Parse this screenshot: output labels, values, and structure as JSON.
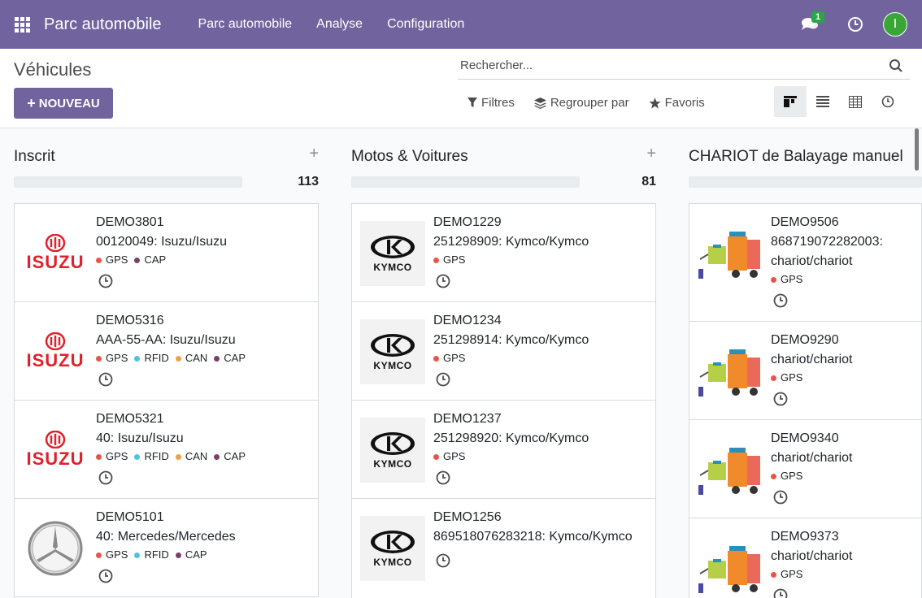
{
  "navbar": {
    "brand": "Parc automobile",
    "menu": [
      "Parc automobile",
      "Analyse",
      "Configuration"
    ],
    "chat_count": "1",
    "avatar_initial": "I",
    "bg_color": "#71639e"
  },
  "control": {
    "breadcrumb": "Véhicules",
    "new_button": "NOUVEAU",
    "search_placeholder": "Rechercher...",
    "filters_label": "Filtres",
    "group_by_label": "Regrouper par",
    "favorites_label": "Favoris",
    "views": [
      "kanban-view-icon",
      "list-view-icon",
      "pivot-view-icon",
      "activity-view-icon"
    ],
    "active_view": "kanban"
  },
  "tag_colors": {
    "GPS": "#e9544a",
    "RFID": "#4fc1e9",
    "CAN": "#f0a04b",
    "CAP": "#7a3e6f"
  },
  "columns": [
    {
      "title": "Inscrit",
      "count": "113",
      "cards": [
        {
          "name": "DEMO3801",
          "desc": "00120049: Isuzu/Isuzu",
          "logo": "isuzu",
          "tags": [
            "GPS",
            "CAP"
          ]
        },
        {
          "name": "DEMO5316",
          "desc": "AAA-55-AA: Isuzu/Isuzu",
          "logo": "isuzu",
          "tags": [
            "GPS",
            "RFID",
            "CAN",
            "CAP"
          ]
        },
        {
          "name": "DEMO5321",
          "desc": "40: Isuzu/Isuzu",
          "logo": "isuzu",
          "tags": [
            "GPS",
            "RFID",
            "CAN",
            "CAP"
          ]
        },
        {
          "name": "DEMO5101",
          "desc": "40: Mercedes/Mercedes",
          "logo": "mercedes",
          "tags": [
            "GPS",
            "RFID",
            "CAP"
          ]
        }
      ]
    },
    {
      "title": "Motos & Voitures",
      "count": "81",
      "cards": [
        {
          "name": "DEMO1229",
          "desc": "251298909: Kymco/Kymco",
          "logo": "kymco",
          "tags": [
            "GPS"
          ]
        },
        {
          "name": "DEMO1234",
          "desc": "251298914: Kymco/Kymco",
          "logo": "kymco",
          "tags": [
            "GPS"
          ]
        },
        {
          "name": "DEMO1237",
          "desc": "251298920: Kymco/Kymco",
          "logo": "kymco",
          "tags": [
            "GPS"
          ]
        },
        {
          "name": "DEMO1256",
          "desc": "869518076283218: Kymco/Kymco",
          "logo": "kymco",
          "tags": []
        }
      ]
    },
    {
      "title": "CHARIOT de Balayage manuel",
      "count": "",
      "cards": [
        {
          "name": "DEMO9506",
          "desc": "868719072282003: chariot/chariot",
          "logo": "chariot",
          "tags": [
            "GPS"
          ]
        },
        {
          "name": "DEMO9290",
          "desc": "chariot/chariot",
          "logo": "chariot",
          "tags": [
            "GPS"
          ]
        },
        {
          "name": "DEMO9340",
          "desc": "chariot/chariot",
          "logo": "chariot",
          "tags": [
            "GPS"
          ]
        },
        {
          "name": "DEMO9373",
          "desc": "chariot/chariot",
          "logo": "chariot",
          "tags": [
            "GPS"
          ]
        }
      ]
    }
  ]
}
